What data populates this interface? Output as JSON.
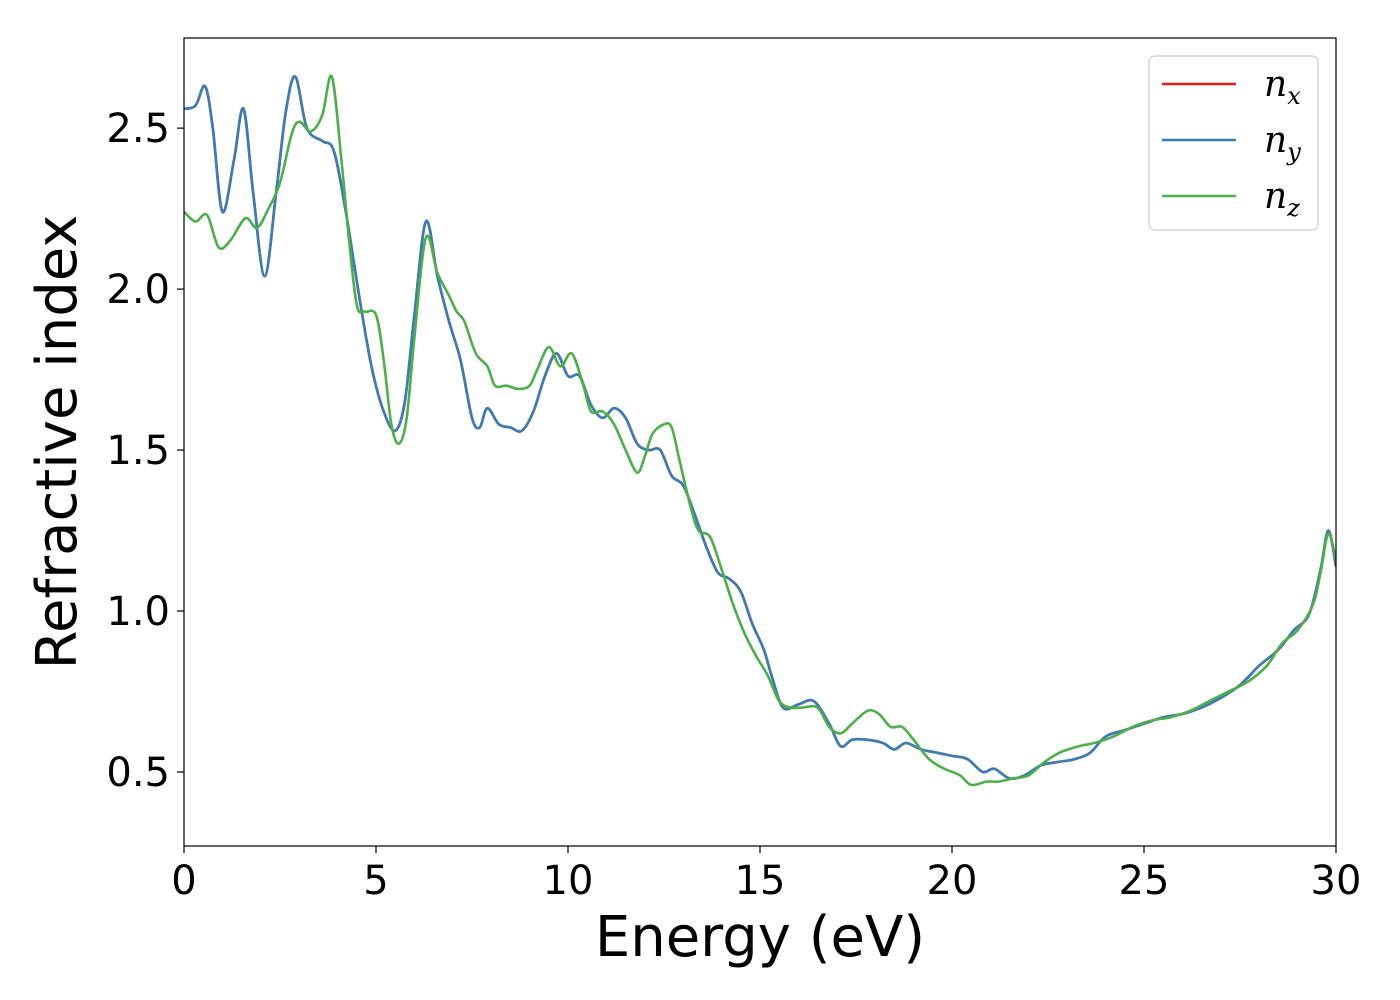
{
  "chart_data": {
    "type": "line",
    "title": "",
    "xlabel": "Energy (eV)",
    "ylabel": "Refractive index",
    "xlim": [
      0,
      30
    ],
    "ylim": [
      0.27,
      2.78
    ],
    "x_ticks": [
      "0",
      "5",
      "10",
      "15",
      "20",
      "25",
      "30"
    ],
    "y_ticks": [
      "0.5",
      "1.0",
      "1.5",
      "2.0",
      "2.5"
    ],
    "grid": false,
    "legend_position": "top-right",
    "series": [
      {
        "name": "n_x",
        "legend_base": "n",
        "legend_sub": "x",
        "color": "#e41a1c",
        "points": [
          [
            0,
            2.56
          ],
          [
            0.3,
            2.57
          ],
          [
            0.55,
            2.63
          ],
          [
            0.75,
            2.5
          ],
          [
            1.0,
            2.24
          ],
          [
            1.3,
            2.4
          ],
          [
            1.55,
            2.56
          ],
          [
            1.8,
            2.3
          ],
          [
            2.1,
            2.04
          ],
          [
            2.4,
            2.3
          ],
          [
            2.65,
            2.55
          ],
          [
            2.9,
            2.66
          ],
          [
            3.2,
            2.5
          ],
          [
            3.6,
            2.46
          ],
          [
            3.9,
            2.43
          ],
          [
            4.2,
            2.25
          ],
          [
            4.6,
            1.95
          ],
          [
            4.9,
            1.75
          ],
          [
            5.2,
            1.62
          ],
          [
            5.5,
            1.56
          ],
          [
            5.75,
            1.65
          ],
          [
            6.0,
            1.92
          ],
          [
            6.3,
            2.21
          ],
          [
            6.6,
            2.04
          ],
          [
            6.9,
            1.9
          ],
          [
            7.2,
            1.78
          ],
          [
            7.5,
            1.6
          ],
          [
            7.7,
            1.57
          ],
          [
            7.9,
            1.63
          ],
          [
            8.2,
            1.58
          ],
          [
            8.5,
            1.57
          ],
          [
            8.8,
            1.56
          ],
          [
            9.1,
            1.62
          ],
          [
            9.4,
            1.73
          ],
          [
            9.7,
            1.8
          ],
          [
            10.0,
            1.73
          ],
          [
            10.3,
            1.73
          ],
          [
            10.6,
            1.64
          ],
          [
            10.9,
            1.6
          ],
          [
            11.2,
            1.63
          ],
          [
            11.5,
            1.6
          ],
          [
            11.8,
            1.52
          ],
          [
            12.1,
            1.5
          ],
          [
            12.4,
            1.5
          ],
          [
            12.7,
            1.42
          ],
          [
            13.0,
            1.39
          ],
          [
            13.3,
            1.3
          ],
          [
            13.6,
            1.2
          ],
          [
            13.9,
            1.12
          ],
          [
            14.2,
            1.1
          ],
          [
            14.5,
            1.06
          ],
          [
            14.8,
            0.96
          ],
          [
            15.1,
            0.88
          ],
          [
            15.3,
            0.8
          ],
          [
            15.6,
            0.7
          ],
          [
            16.0,
            0.71
          ],
          [
            16.4,
            0.72
          ],
          [
            16.8,
            0.65
          ],
          [
            17.1,
            0.58
          ],
          [
            17.4,
            0.6
          ],
          [
            17.8,
            0.6
          ],
          [
            18.2,
            0.59
          ],
          [
            18.5,
            0.57
          ],
          [
            18.8,
            0.59
          ],
          [
            19.2,
            0.57
          ],
          [
            19.6,
            0.56
          ],
          [
            20.0,
            0.55
          ],
          [
            20.4,
            0.54
          ],
          [
            20.8,
            0.5
          ],
          [
            21.1,
            0.51
          ],
          [
            21.5,
            0.48
          ],
          [
            21.9,
            0.49
          ],
          [
            22.3,
            0.52
          ],
          [
            22.7,
            0.53
          ],
          [
            23.2,
            0.54
          ],
          [
            23.6,
            0.56
          ],
          [
            24.0,
            0.61
          ],
          [
            24.5,
            0.63
          ],
          [
            25.0,
            0.65
          ],
          [
            25.5,
            0.67
          ],
          [
            26.0,
            0.68
          ],
          [
            26.5,
            0.7
          ],
          [
            27.0,
            0.73
          ],
          [
            27.5,
            0.77
          ],
          [
            28.0,
            0.83
          ],
          [
            28.5,
            0.88
          ],
          [
            28.9,
            0.94
          ],
          [
            29.3,
            0.99
          ],
          [
            29.6,
            1.13
          ],
          [
            29.8,
            1.25
          ],
          [
            30.0,
            1.14
          ]
        ]
      },
      {
        "name": "n_y",
        "legend_base": "n",
        "legend_sub": "y",
        "color": "#377eb8",
        "points": [
          [
            0,
            2.56
          ],
          [
            0.3,
            2.57
          ],
          [
            0.55,
            2.63
          ],
          [
            0.75,
            2.5
          ],
          [
            1.0,
            2.24
          ],
          [
            1.3,
            2.4
          ],
          [
            1.55,
            2.56
          ],
          [
            1.8,
            2.3
          ],
          [
            2.1,
            2.04
          ],
          [
            2.4,
            2.3
          ],
          [
            2.65,
            2.55
          ],
          [
            2.9,
            2.66
          ],
          [
            3.2,
            2.5
          ],
          [
            3.6,
            2.46
          ],
          [
            3.9,
            2.43
          ],
          [
            4.2,
            2.25
          ],
          [
            4.6,
            1.95
          ],
          [
            4.9,
            1.75
          ],
          [
            5.2,
            1.62
          ],
          [
            5.5,
            1.56
          ],
          [
            5.75,
            1.65
          ],
          [
            6.0,
            1.92
          ],
          [
            6.3,
            2.21
          ],
          [
            6.6,
            2.04
          ],
          [
            6.9,
            1.9
          ],
          [
            7.2,
            1.78
          ],
          [
            7.5,
            1.6
          ],
          [
            7.7,
            1.57
          ],
          [
            7.9,
            1.63
          ],
          [
            8.2,
            1.58
          ],
          [
            8.5,
            1.57
          ],
          [
            8.8,
            1.56
          ],
          [
            9.1,
            1.62
          ],
          [
            9.4,
            1.73
          ],
          [
            9.7,
            1.8
          ],
          [
            10.0,
            1.73
          ],
          [
            10.3,
            1.73
          ],
          [
            10.6,
            1.64
          ],
          [
            10.9,
            1.6
          ],
          [
            11.2,
            1.63
          ],
          [
            11.5,
            1.6
          ],
          [
            11.8,
            1.52
          ],
          [
            12.1,
            1.5
          ],
          [
            12.4,
            1.5
          ],
          [
            12.7,
            1.42
          ],
          [
            13.0,
            1.39
          ],
          [
            13.3,
            1.3
          ],
          [
            13.6,
            1.2
          ],
          [
            13.9,
            1.12
          ],
          [
            14.2,
            1.1
          ],
          [
            14.5,
            1.06
          ],
          [
            14.8,
            0.96
          ],
          [
            15.1,
            0.88
          ],
          [
            15.3,
            0.8
          ],
          [
            15.6,
            0.7
          ],
          [
            16.0,
            0.71
          ],
          [
            16.4,
            0.72
          ],
          [
            16.8,
            0.65
          ],
          [
            17.1,
            0.58
          ],
          [
            17.4,
            0.6
          ],
          [
            17.8,
            0.6
          ],
          [
            18.2,
            0.59
          ],
          [
            18.5,
            0.57
          ],
          [
            18.8,
            0.59
          ],
          [
            19.2,
            0.57
          ],
          [
            19.6,
            0.56
          ],
          [
            20.0,
            0.55
          ],
          [
            20.4,
            0.54
          ],
          [
            20.8,
            0.5
          ],
          [
            21.1,
            0.51
          ],
          [
            21.5,
            0.48
          ],
          [
            21.9,
            0.49
          ],
          [
            22.3,
            0.52
          ],
          [
            22.7,
            0.53
          ],
          [
            23.2,
            0.54
          ],
          [
            23.6,
            0.56
          ],
          [
            24.0,
            0.61
          ],
          [
            24.5,
            0.63
          ],
          [
            25.0,
            0.65
          ],
          [
            25.5,
            0.67
          ],
          [
            26.0,
            0.68
          ],
          [
            26.5,
            0.7
          ],
          [
            27.0,
            0.73
          ],
          [
            27.5,
            0.77
          ],
          [
            28.0,
            0.83
          ],
          [
            28.5,
            0.88
          ],
          [
            28.9,
            0.94
          ],
          [
            29.3,
            0.99
          ],
          [
            29.6,
            1.13
          ],
          [
            29.8,
            1.25
          ],
          [
            30.0,
            1.14
          ]
        ]
      },
      {
        "name": "n_z",
        "legend_base": "n",
        "legend_sub": "z",
        "color": "#4daf4a",
        "points": [
          [
            0,
            2.24
          ],
          [
            0.3,
            2.21
          ],
          [
            0.6,
            2.23
          ],
          [
            0.9,
            2.13
          ],
          [
            1.2,
            2.15
          ],
          [
            1.6,
            2.22
          ],
          [
            1.9,
            2.19
          ],
          [
            2.2,
            2.25
          ],
          [
            2.5,
            2.33
          ],
          [
            2.8,
            2.48
          ],
          [
            3.0,
            2.52
          ],
          [
            3.3,
            2.49
          ],
          [
            3.6,
            2.54
          ],
          [
            3.85,
            2.66
          ],
          [
            4.1,
            2.4
          ],
          [
            4.3,
            2.15
          ],
          [
            4.5,
            1.95
          ],
          [
            4.7,
            1.93
          ],
          [
            5.0,
            1.92
          ],
          [
            5.2,
            1.78
          ],
          [
            5.4,
            1.58
          ],
          [
            5.6,
            1.52
          ],
          [
            5.8,
            1.6
          ],
          [
            6.0,
            1.85
          ],
          [
            6.3,
            2.16
          ],
          [
            6.6,
            2.05
          ],
          [
            6.9,
            1.98
          ],
          [
            7.1,
            1.93
          ],
          [
            7.3,
            1.9
          ],
          [
            7.6,
            1.8
          ],
          [
            7.9,
            1.76
          ],
          [
            8.1,
            1.7
          ],
          [
            8.4,
            1.7
          ],
          [
            8.7,
            1.69
          ],
          [
            9.0,
            1.7
          ],
          [
            9.2,
            1.75
          ],
          [
            9.5,
            1.82
          ],
          [
            9.8,
            1.76
          ],
          [
            10.1,
            1.8
          ],
          [
            10.4,
            1.7
          ],
          [
            10.6,
            1.62
          ],
          [
            10.9,
            1.62
          ],
          [
            11.2,
            1.58
          ],
          [
            11.5,
            1.5
          ],
          [
            11.8,
            1.43
          ],
          [
            12.0,
            1.48
          ],
          [
            12.2,
            1.55
          ],
          [
            12.5,
            1.58
          ],
          [
            12.7,
            1.57
          ],
          [
            12.9,
            1.47
          ],
          [
            13.2,
            1.32
          ],
          [
            13.4,
            1.25
          ],
          [
            13.7,
            1.23
          ],
          [
            14.0,
            1.13
          ],
          [
            14.3,
            1.02
          ],
          [
            14.6,
            0.93
          ],
          [
            14.9,
            0.86
          ],
          [
            15.2,
            0.8
          ],
          [
            15.5,
            0.72
          ],
          [
            15.8,
            0.7
          ],
          [
            16.1,
            0.7
          ],
          [
            16.5,
            0.7
          ],
          [
            16.8,
            0.64
          ],
          [
            17.1,
            0.62
          ],
          [
            17.4,
            0.65
          ],
          [
            17.8,
            0.69
          ],
          [
            18.1,
            0.68
          ],
          [
            18.4,
            0.64
          ],
          [
            18.7,
            0.64
          ],
          [
            19.0,
            0.6
          ],
          [
            19.4,
            0.54
          ],
          [
            19.8,
            0.51
          ],
          [
            20.2,
            0.49
          ],
          [
            20.5,
            0.46
          ],
          [
            20.9,
            0.47
          ],
          [
            21.2,
            0.47
          ],
          [
            21.6,
            0.48
          ],
          [
            22.0,
            0.49
          ],
          [
            22.4,
            0.53
          ],
          [
            22.8,
            0.56
          ],
          [
            23.3,
            0.58
          ],
          [
            23.7,
            0.59
          ],
          [
            24.2,
            0.61
          ],
          [
            24.7,
            0.64
          ],
          [
            25.2,
            0.66
          ],
          [
            25.7,
            0.67
          ],
          [
            26.2,
            0.69
          ],
          [
            26.7,
            0.72
          ],
          [
            27.2,
            0.75
          ],
          [
            27.7,
            0.78
          ],
          [
            28.2,
            0.83
          ],
          [
            28.6,
            0.9
          ],
          [
            29.0,
            0.94
          ],
          [
            29.4,
            1.02
          ],
          [
            29.6,
            1.12
          ],
          [
            29.8,
            1.24
          ],
          [
            30.0,
            1.16
          ]
        ]
      }
    ]
  }
}
